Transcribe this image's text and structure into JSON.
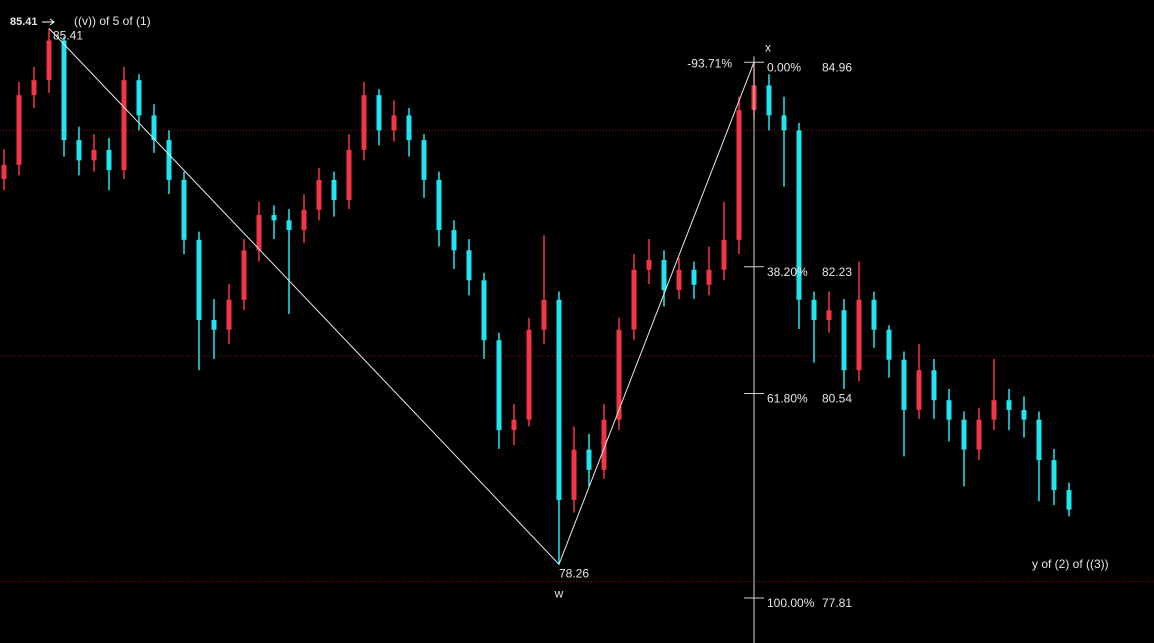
{
  "chart_data": {
    "type": "candlestick",
    "ylim": [
      77.21,
      85.79
    ],
    "up_color": "#f23645",
    "down_color": "#22e4f0",
    "grid_lines": [
      84.05,
      81.04,
      78.03
    ],
    "open": [
      83.4,
      83.59,
      84.52,
      84.72,
      85.25,
      83.92,
      83.65,
      83.79,
      83.52,
      84.72,
      84.25,
      83.92,
      83.39,
      82.59,
      81.52,
      81.39,
      81.79,
      82.45,
      82.92,
      82.85,
      82.72,
      82.99,
      83.39,
      83.12,
      83.79,
      84.52,
      84.05,
      84.25,
      83.92,
      83.39,
      82.72,
      82.45,
      82.05,
      81.25,
      80.05,
      80.19,
      81.39,
      81.79,
      79.12,
      79.79,
      79.52,
      80.19,
      81.39,
      82.19,
      82.32,
      81.92,
      82.19,
      81.99,
      82.19,
      82.59,
      84.32,
      84.65,
      84.25,
      84.05,
      81.79,
      81.52,
      81.65,
      80.85,
      81.79,
      81.39,
      80.99,
      80.32,
      80.85,
      80.45,
      80.19,
      79.79,
      80.19,
      80.45,
      80.32,
      80.19,
      79.65,
      79.25
    ],
    "high": [
      83.8,
      84.7,
      84.9,
      85.41,
      85.3,
      84.1,
      84.0,
      83.95,
      84.9,
      84.8,
      84.4,
      84.05,
      83.5,
      82.7,
      81.8,
      82.0,
      82.6,
      83.1,
      83.05,
      83.0,
      83.2,
      83.55,
      83.5,
      84.0,
      84.7,
      84.6,
      84.45,
      84.35,
      84.0,
      83.5,
      82.85,
      82.6,
      82.15,
      81.35,
      80.4,
      81.55,
      82.65,
      81.9,
      80.1,
      80.0,
      80.4,
      81.55,
      82.4,
      82.6,
      82.45,
      82.35,
      82.3,
      82.5,
      83.1,
      84.5,
      84.96,
      84.8,
      84.5,
      84.15,
      81.9,
      81.9,
      81.8,
      82.3,
      81.9,
      81.45,
      81.1,
      81.2,
      81.0,
      80.6,
      80.3,
      80.35,
      81.0,
      80.6,
      80.5,
      80.3,
      79.8,
      79.35
    ],
    "low": [
      83.25,
      83.45,
      84.35,
      84.55,
      83.7,
      83.45,
      83.5,
      83.25,
      83.4,
      84.05,
      83.75,
      83.2,
      82.4,
      80.85,
      81.0,
      81.2,
      81.65,
      82.3,
      82.6,
      81.6,
      82.55,
      82.85,
      82.9,
      83.0,
      83.65,
      83.85,
      83.9,
      83.7,
      83.15,
      82.5,
      82.2,
      81.85,
      81.0,
      79.8,
      79.85,
      80.1,
      81.2,
      78.26,
      78.95,
      79.3,
      79.4,
      80.05,
      81.25,
      82.0,
      81.7,
      81.8,
      81.8,
      81.85,
      82.05,
      82.4,
      84.2,
      84.05,
      83.3,
      81.4,
      80.95,
      81.35,
      80.6,
      80.7,
      81.15,
      80.75,
      79.7,
      80.2,
      80.2,
      79.9,
      79.3,
      79.65,
      80.05,
      80.05,
      79.95,
      79.1,
      79.05,
      78.9
    ],
    "close": [
      83.59,
      84.52,
      84.72,
      85.25,
      83.92,
      83.65,
      83.79,
      83.52,
      84.72,
      84.25,
      83.92,
      83.39,
      82.59,
      81.52,
      81.39,
      81.79,
      82.45,
      82.92,
      82.85,
      82.72,
      82.99,
      83.39,
      83.12,
      83.79,
      84.52,
      84.05,
      84.25,
      83.92,
      83.39,
      82.72,
      82.45,
      82.05,
      81.25,
      80.05,
      80.19,
      81.39,
      81.79,
      79.12,
      79.79,
      79.52,
      80.19,
      81.39,
      82.19,
      82.32,
      81.92,
      82.19,
      81.99,
      82.19,
      82.59,
      84.32,
      84.65,
      84.25,
      84.05,
      81.79,
      81.52,
      81.65,
      80.85,
      81.79,
      81.39,
      80.99,
      80.32,
      80.85,
      80.45,
      80.19,
      79.79,
      80.19,
      80.45,
      80.32,
      80.19,
      79.65,
      79.25,
      78.99
    ],
    "pivots": [
      {
        "name": "((v)) of 5 of (1)",
        "value": 85.41
      },
      {
        "name": "w",
        "value": 78.26
      },
      {
        "name": "x",
        "value": 84.96
      }
    ],
    "fib_extension_label": "-93.71%",
    "fib_levels": [
      {
        "label": "0.00%",
        "value": 84.96
      },
      {
        "label": "38.20%",
        "value": 82.23
      },
      {
        "label": "61.80%",
        "value": 80.54
      },
      {
        "label": "100.00%",
        "value": 77.81
      }
    ],
    "end_label": "y of (2) of ((3))"
  }
}
